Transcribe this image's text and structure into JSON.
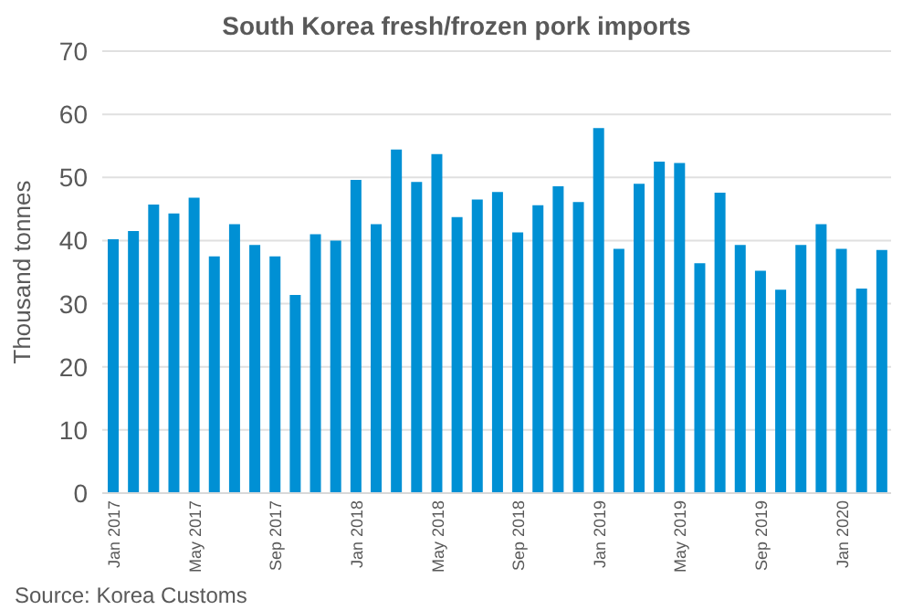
{
  "chart_data": {
    "type": "bar",
    "title": "South Korea fresh/frozen pork imports",
    "ylabel": "Thousand tonnes",
    "categories": [
      "Jan 2017",
      null,
      null,
      null,
      "May 2017",
      null,
      null,
      null,
      "Sep 2017",
      null,
      null,
      null,
      "Jan 2018",
      null,
      null,
      null,
      "May 2018",
      null,
      null,
      null,
      "Sep 2018",
      null,
      null,
      null,
      "Jan 2019",
      null,
      null,
      null,
      "May 2019",
      null,
      null,
      null,
      "Sep 2019",
      null,
      null,
      null,
      "Jan 2020",
      null,
      null
    ],
    "values": [
      40.2,
      41.5,
      45.7,
      44.3,
      46.8,
      37.5,
      42.6,
      39.3,
      37.5,
      31.4,
      41,
      40,
      49.6,
      42.6,
      54.4,
      49.3,
      53.7,
      43.7,
      46.5,
      47.7,
      41.3,
      45.6,
      48.6,
      46.1,
      57.8,
      38.7,
      49,
      52.5,
      52.3,
      36.4,
      47.6,
      39.3,
      35.2,
      32.2,
      39.3,
      42.6,
      38.7,
      32.4,
      38.5
    ],
    "color": "#0090d4",
    "ylim": [
      0,
      70
    ],
    "yticks": [
      0,
      10,
      20,
      30,
      40,
      50,
      60,
      70
    ],
    "grid": "y",
    "annotations": [
      "Source: Korea Customs"
    ]
  }
}
